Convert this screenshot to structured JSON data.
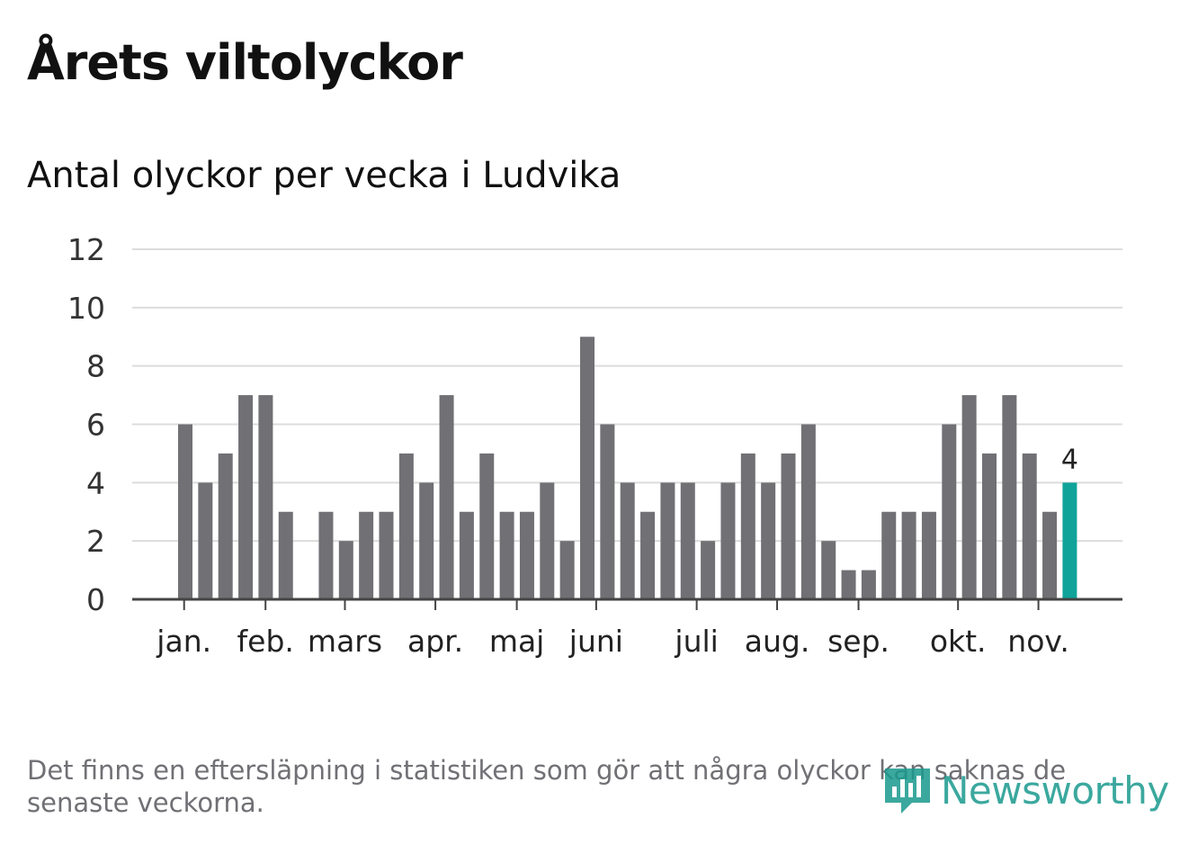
{
  "header": {
    "title": "Årets viltolyckor",
    "subtitle": "Antal olyckor per vecka i Ludvika"
  },
  "chart_data": {
    "type": "bar",
    "title": "Årets viltolyckor",
    "subtitle": "Antal olyckor per vecka i Ludvika",
    "xlabel": "",
    "ylabel": "",
    "ylim": [
      0,
      12
    ],
    "y_ticks": [
      0,
      2,
      4,
      6,
      8,
      10,
      12
    ],
    "grid": true,
    "values": [
      6,
      4,
      5,
      7,
      7,
      3,
      0,
      3,
      2,
      3,
      3,
      5,
      4,
      7,
      3,
      5,
      3,
      3,
      4,
      2,
      9,
      6,
      4,
      3,
      4,
      4,
      2,
      4,
      5,
      4,
      5,
      6,
      2,
      1,
      1,
      3,
      3,
      3,
      6,
      7,
      5,
      7,
      5,
      3,
      4
    ],
    "month_labels": [
      {
        "label": "jan.",
        "week_index": 0.3
      },
      {
        "label": "feb.",
        "week_index": 4.35
      },
      {
        "label": "mars",
        "week_index": 8.3
      },
      {
        "label": "apr.",
        "week_index": 12.8
      },
      {
        "label": "maj",
        "week_index": 16.85
      },
      {
        "label": "juni",
        "week_index": 20.8
      },
      {
        "label": "juli",
        "week_index": 25.8
      },
      {
        "label": "aug.",
        "week_index": 29.8
      },
      {
        "label": "sep.",
        "week_index": 33.85
      },
      {
        "label": "okt.",
        "week_index": 38.8
      },
      {
        "label": "nov.",
        "week_index": 42.8
      }
    ],
    "highlight_index": 44,
    "highlight_label": "4",
    "colors": {
      "bar": "#707075",
      "highlight": "#0fa39a",
      "grid": "#dcdcdc",
      "axis": "#444444",
      "tick_text": "#333333",
      "label_text": "#222222"
    }
  },
  "footer": {
    "note": "Det finns en eftersläpning i statistiken som gör att några olyckor kan saknas de senaste veckorna.",
    "logo_text": "Newsworthy",
    "logo_icon": "bar-chart-pin-icon",
    "logo_color": "#1a9a8e"
  }
}
